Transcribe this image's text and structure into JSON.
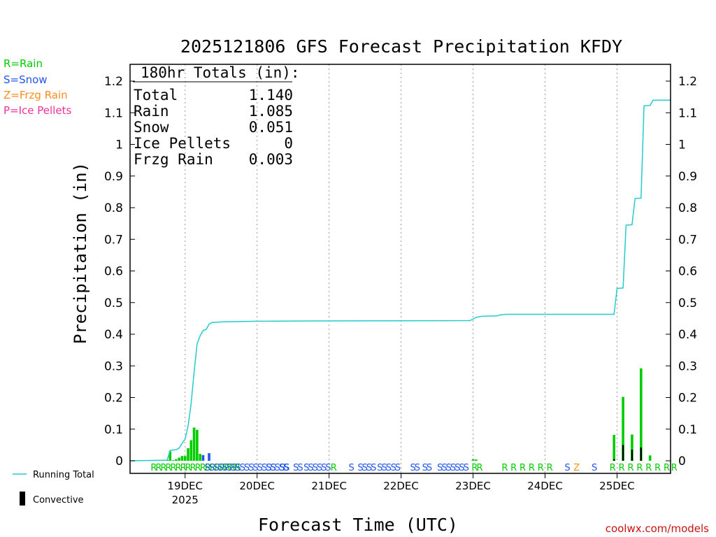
{
  "chart_data": {
    "type": "bar",
    "title": "2025121806 GFS Forecast Precipitation KFDY",
    "xlabel": "Forecast Time (UTC)",
    "ylabel": "Precipitation (in)",
    "ylim": [
      0,
      1.25
    ],
    "y_ticks": [
      0,
      0.1,
      0.2,
      0.3,
      0.4,
      0.5,
      0.6,
      0.7,
      0.8,
      0.9,
      1,
      1.1,
      1.2
    ],
    "y_tick_labels": [
      "0",
      "0.1",
      "0.2",
      "0.3",
      "0.4",
      "0.5",
      "0.6",
      "0.7",
      "0.8",
      "0.9",
      "1",
      "1.1",
      "1.2"
    ],
    "x_unit": "forecast hour",
    "xlim": [
      0,
      180
    ],
    "x_ticks": [
      {
        "hour": 18,
        "label": "19DEC",
        "sublabel": "2025"
      },
      {
        "hour": 42,
        "label": "20DEC",
        "sublabel": ""
      },
      {
        "hour": 66,
        "label": "21DEC",
        "sublabel": ""
      },
      {
        "hour": 90,
        "label": "22DEC",
        "sublabel": ""
      },
      {
        "hour": 114,
        "label": "23DEC",
        "sublabel": ""
      },
      {
        "hour": 138,
        "label": "24DEC",
        "sublabel": ""
      },
      {
        "hour": 162,
        "label": "25DEC",
        "sublabel": ""
      }
    ],
    "legend": {
      "rain": "R=Rain",
      "snow": "S=Snow",
      "frzg": "Z=Frzg Rain",
      "ice": "P=Ice Pellets",
      "running_total": "Running Total",
      "convective": "Convective"
    },
    "colors": {
      "rain": "#00cc00",
      "snow": "#2255ee",
      "frzg": "#ff8c1a",
      "ice": "#ee3399",
      "running_total": "#22cccc",
      "convective": "#000000",
      "grid": "#999999"
    },
    "totals_title": "180hr Totals (in):",
    "totals": [
      {
        "label": "Total",
        "value": "1.140"
      },
      {
        "label": "Rain",
        "value": "1.085"
      },
      {
        "label": "Snow",
        "value": "0.051"
      },
      {
        "label": "Ice Pellets",
        "value": "0"
      },
      {
        "label": "Frzg Rain",
        "value": "0.003"
      }
    ],
    "bars": [
      {
        "hour": 12,
        "value": 0.003,
        "type": "rain"
      },
      {
        "hour": 13,
        "value": 0.03,
        "type": "rain"
      },
      {
        "hour": 14,
        "value": 0.002,
        "type": "rain"
      },
      {
        "hour": 15,
        "value": 0.005,
        "type": "rain"
      },
      {
        "hour": 16,
        "value": 0.01,
        "type": "rain"
      },
      {
        "hour": 17,
        "value": 0.015,
        "type": "rain"
      },
      {
        "hour": 18,
        "value": 0.015,
        "type": "rain"
      },
      {
        "hour": 19,
        "value": 0.04,
        "type": "rain"
      },
      {
        "hour": 20,
        "value": 0.065,
        "type": "rain"
      },
      {
        "hour": 21,
        "value": 0.105,
        "type": "rain"
      },
      {
        "hour": 22,
        "value": 0.098,
        "type": "rain"
      },
      {
        "hour": 23,
        "value": 0.022,
        "type": "rain"
      },
      {
        "hour": 24,
        "value": 0.018,
        "type": "snow"
      },
      {
        "hour": 26,
        "value": 0.024,
        "type": "snow"
      },
      {
        "hour": 114,
        "value": 0.005,
        "type": "rain"
      },
      {
        "hour": 115,
        "value": 0.004,
        "type": "rain"
      },
      {
        "hour": 161,
        "value": 0.082,
        "type": "rain",
        "convective": 0.005
      },
      {
        "hour": 164,
        "value": 0.202,
        "type": "rain",
        "convective": 0.05
      },
      {
        "hour": 167,
        "value": 0.083,
        "type": "rain",
        "convective": 0.035
      },
      {
        "hour": 170,
        "value": 0.292,
        "type": "rain",
        "convective": 0.042
      },
      {
        "hour": 173,
        "value": 0.017,
        "type": "rain"
      }
    ],
    "running_total": [
      [
        0,
        0
      ],
      [
        12,
        0.002
      ],
      [
        13,
        0.033
      ],
      [
        15,
        0.035
      ],
      [
        16,
        0.04
      ],
      [
        17,
        0.055
      ],
      [
        18,
        0.068
      ],
      [
        19,
        0.11
      ],
      [
        20,
        0.18
      ],
      [
        21,
        0.28
      ],
      [
        22,
        0.37
      ],
      [
        23,
        0.395
      ],
      [
        24,
        0.412
      ],
      [
        25,
        0.415
      ],
      [
        26,
        0.432
      ],
      [
        27,
        0.437
      ],
      [
        30,
        0.439
      ],
      [
        36,
        0.44
      ],
      [
        42,
        0.441
      ],
      [
        60,
        0.442
      ],
      [
        113,
        0.443
      ],
      [
        115,
        0.453
      ],
      [
        117,
        0.457
      ],
      [
        122,
        0.458
      ],
      [
        123,
        0.461
      ],
      [
        125,
        0.463
      ],
      [
        161,
        0.463
      ],
      [
        162,
        0.545
      ],
      [
        164,
        0.546
      ],
      [
        165,
        0.745
      ],
      [
        167,
        0.746
      ],
      [
        168,
        0.829
      ],
      [
        170,
        0.83
      ],
      [
        171,
        1.122
      ],
      [
        173,
        1.123
      ],
      [
        174,
        1.14
      ],
      [
        180,
        1.14
      ]
    ],
    "ptype_strip": [
      {
        "text": "RRRRRRRRRRRRRRRRRR",
        "hour": 6.5,
        "type": "rain"
      },
      {
        "text": "SSSSSSSSSSSSSSSSSSS",
        "hour": 24.5,
        "type": "snow"
      },
      {
        "text": "SS",
        "hour": 45,
        "type": "snow"
      },
      {
        "text": "SS",
        "hour": 49.5,
        "type": "snow"
      },
      {
        "text": "SS",
        "hour": 54,
        "type": "snow"
      },
      {
        "text": "SSSSSS",
        "hour": 57.5,
        "type": "snow"
      },
      {
        "text": "R",
        "hour": 66.5,
        "type": "rain"
      },
      {
        "text": "S",
        "hour": 72.5,
        "type": "snow"
      },
      {
        "text": "SSSS",
        "hour": 75.5,
        "type": "snow"
      },
      {
        "text": "SSS",
        "hour": 82,
        "type": "snow"
      },
      {
        "text": "SS",
        "hour": 86.5,
        "type": "snow"
      },
      {
        "text": "SS",
        "hour": 93,
        "type": "snow"
      },
      {
        "text": "SS",
        "hour": 97,
        "type": "snow"
      },
      {
        "text": "SSSSSSS",
        "hour": 102,
        "type": "snow"
      },
      {
        "text": "RR",
        "hour": 113.5,
        "type": "rain"
      },
      {
        "text": "R",
        "hour": 123.5,
        "type": "rain"
      },
      {
        "text": "R",
        "hour": 126.5,
        "type": "rain"
      },
      {
        "text": "R",
        "hour": 129.5,
        "type": "rain"
      },
      {
        "text": "R",
        "hour": 132.5,
        "type": "rain"
      },
      {
        "text": "R",
        "hour": 135.5,
        "type": "rain"
      },
      {
        "text": "R",
        "hour": 138.5,
        "type": "rain"
      },
      {
        "text": "S",
        "hour": 144.5,
        "type": "snow"
      },
      {
        "text": "Z",
        "hour": 147.5,
        "type": "frzg"
      },
      {
        "text": "S",
        "hour": 153.5,
        "type": "snow"
      },
      {
        "text": "R",
        "hour": 159.5,
        "type": "rain"
      },
      {
        "text": "R",
        "hour": 162.5,
        "type": "rain"
      },
      {
        "text": "R",
        "hour": 165.5,
        "type": "rain"
      },
      {
        "text": "R",
        "hour": 168.5,
        "type": "rain"
      },
      {
        "text": "R",
        "hour": 171.5,
        "type": "rain"
      },
      {
        "text": "R",
        "hour": 174.5,
        "type": "rain"
      },
      {
        "text": "R",
        "hour": 177.5,
        "type": "rain"
      },
      {
        "text": "R",
        "hour": 180,
        "type": "rain"
      }
    ]
  },
  "credit": "coolwx.com/models"
}
